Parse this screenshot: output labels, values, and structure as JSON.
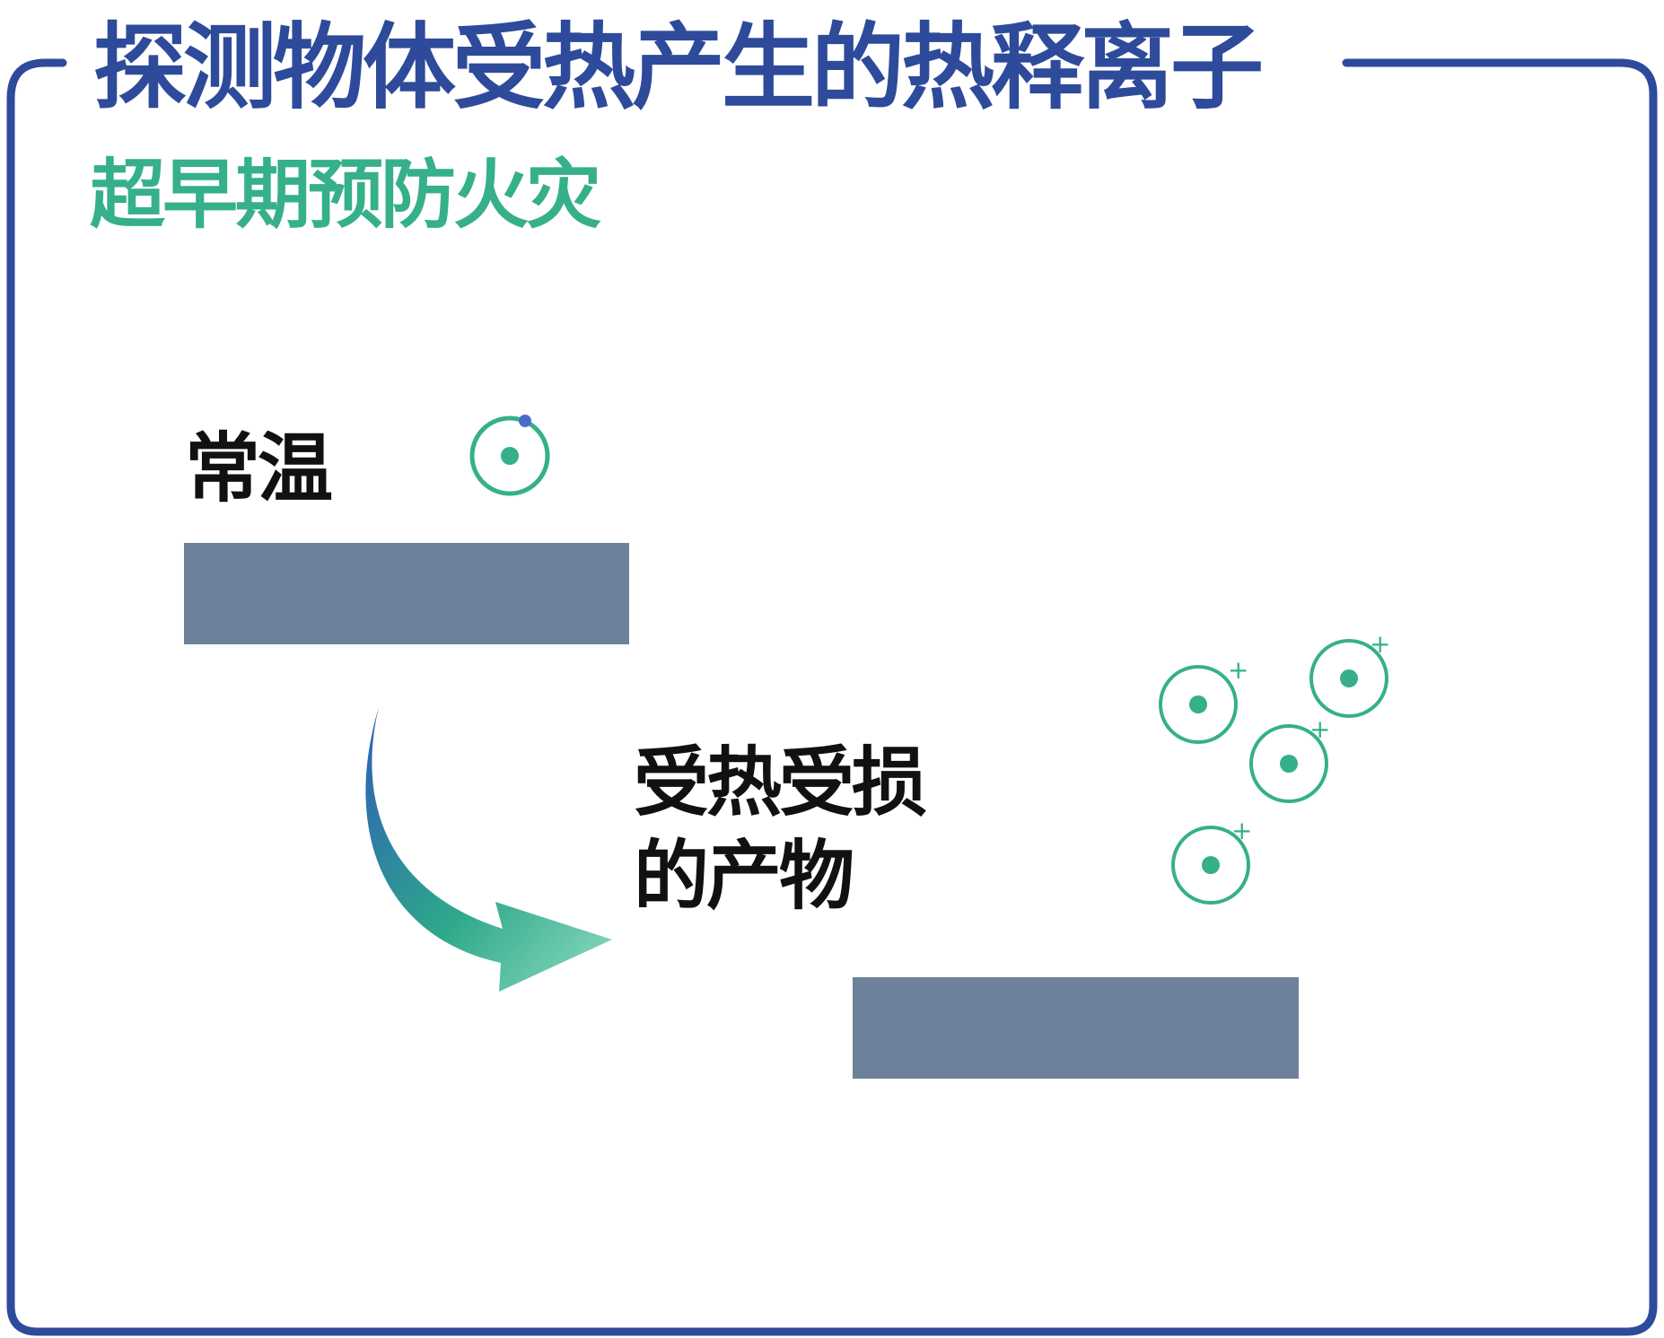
{
  "title": "探测物体受热产生的热释离子",
  "subtitle": "超早期预防火灾",
  "states": {
    "normal_label": "常温",
    "heated_label": "受热受损的产物"
  },
  "ion_symbol": "+",
  "colors": {
    "frame": "#2e4a9a",
    "title": "#2e4a9a",
    "subtitle": "#35b08a",
    "bar": "#6e819a",
    "ion": "#35b08a",
    "arrow_start": "#2e5cb8",
    "arrow_end": "#7fd3b8"
  }
}
